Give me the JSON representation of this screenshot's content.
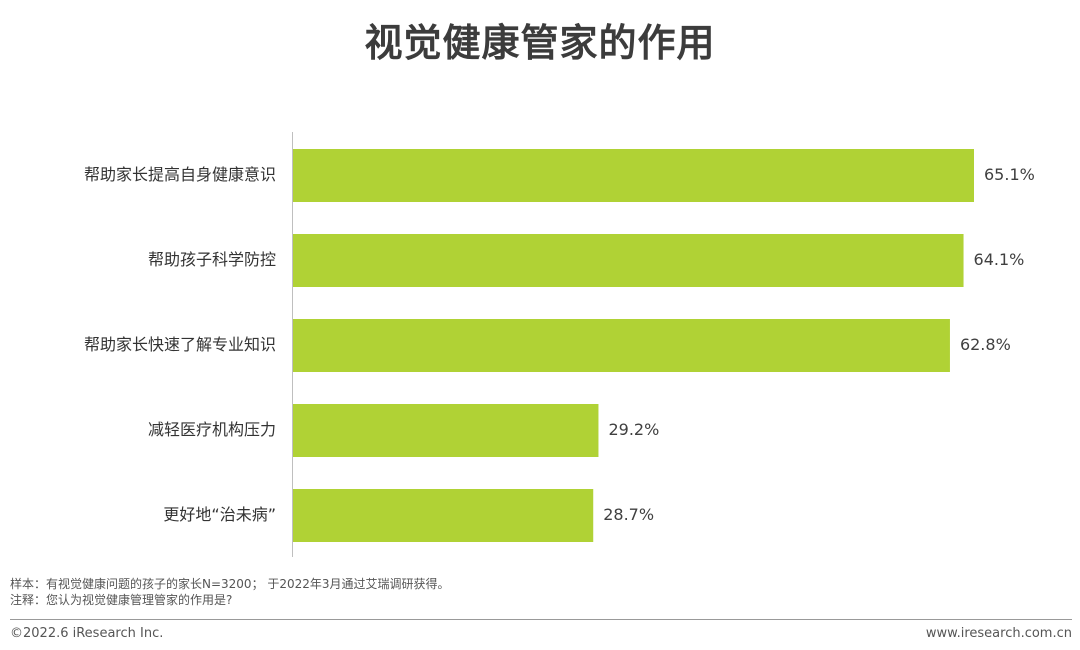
{
  "title": "视觉健康管家的作用",
  "chart_data": {
    "type": "bar",
    "orientation": "horizontal",
    "categories": [
      "帮助家长提高自身健康意识",
      "帮助孩子科学防控",
      "帮助家长快速了解专业知识",
      "减轻医疗机构压力",
      "更好地“治未病”"
    ],
    "values": [
      65.1,
      64.1,
      62.8,
      29.2,
      28.7
    ],
    "value_labels": [
      "65.1%",
      "64.1%",
      "62.8%",
      "29.2%",
      "28.7%"
    ],
    "unit": "%",
    "bar_color": "#b0d235",
    "xlim": [
      0,
      65.1
    ],
    "grid": false
  },
  "notes": {
    "sample": "样本：有视觉健康问题的孩子的家长N=3200； 于2022年3月通过艾瑞调研获得。",
    "note": "注释：您认为视觉健康管理管家的作用是?"
  },
  "footer": {
    "copyright": "©2022.6 iResearch Inc.",
    "website": "www.iresearch.com.cn"
  }
}
